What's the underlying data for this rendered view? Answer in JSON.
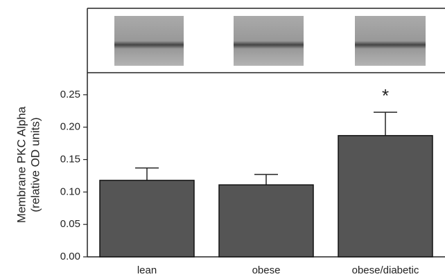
{
  "chart_data": {
    "type": "bar",
    "ylabel": [
      "Membrane PKC Alpha",
      "(relative OD units)"
    ],
    "categories": [
      "lean",
      "obese",
      "obese/diabetic"
    ],
    "values": [
      0.118,
      0.111,
      0.187
    ],
    "errors": [
      0.019,
      0.016,
      0.036
    ],
    "color": "#555555",
    "ylim": [
      0,
      0.284
    ],
    "yticks": [
      {
        "value": 0,
        "label": "0.00"
      },
      0.05,
      {
        "value": 0.1,
        "label": "0.10"
      },
      0.15,
      {
        "value": 0.2,
        "label": "0.20"
      },
      0.25
    ],
    "annotation": {
      "text": "*",
      "category": "obese/diabetic"
    }
  }
}
